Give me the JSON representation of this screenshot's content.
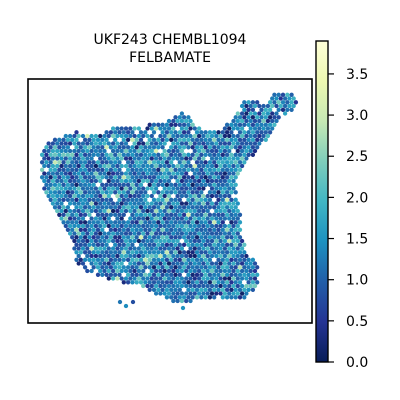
{
  "chart_data": {
    "type": "heatmap",
    "title": [
      "UKF243 CHEMBL1094",
      "FELBAMATE"
    ],
    "xlabel": "",
    "ylabel": "",
    "colorbar": {
      "min": 0.0,
      "max": 3.9,
      "ticks": [
        "0.0",
        "0.5",
        "1.0",
        "1.5",
        "2.0",
        "2.5",
        "3.0",
        "3.5"
      ],
      "tick_values": [
        0.0,
        0.5,
        1.0,
        1.5,
        2.0,
        2.5,
        3.0,
        3.5
      ],
      "colormap": "YlGnBu",
      "stops": [
        "#081d58",
        "#253494",
        "#225ea8",
        "#1d91c0",
        "#41b6c4",
        "#7fcdbb",
        "#c7e9b4",
        "#edf8b1",
        "#ffffd9"
      ]
    },
    "spot_value_summary": {
      "typical_range": [
        0.5,
        2.0
      ],
      "dominant_value": 1.1
    }
  }
}
